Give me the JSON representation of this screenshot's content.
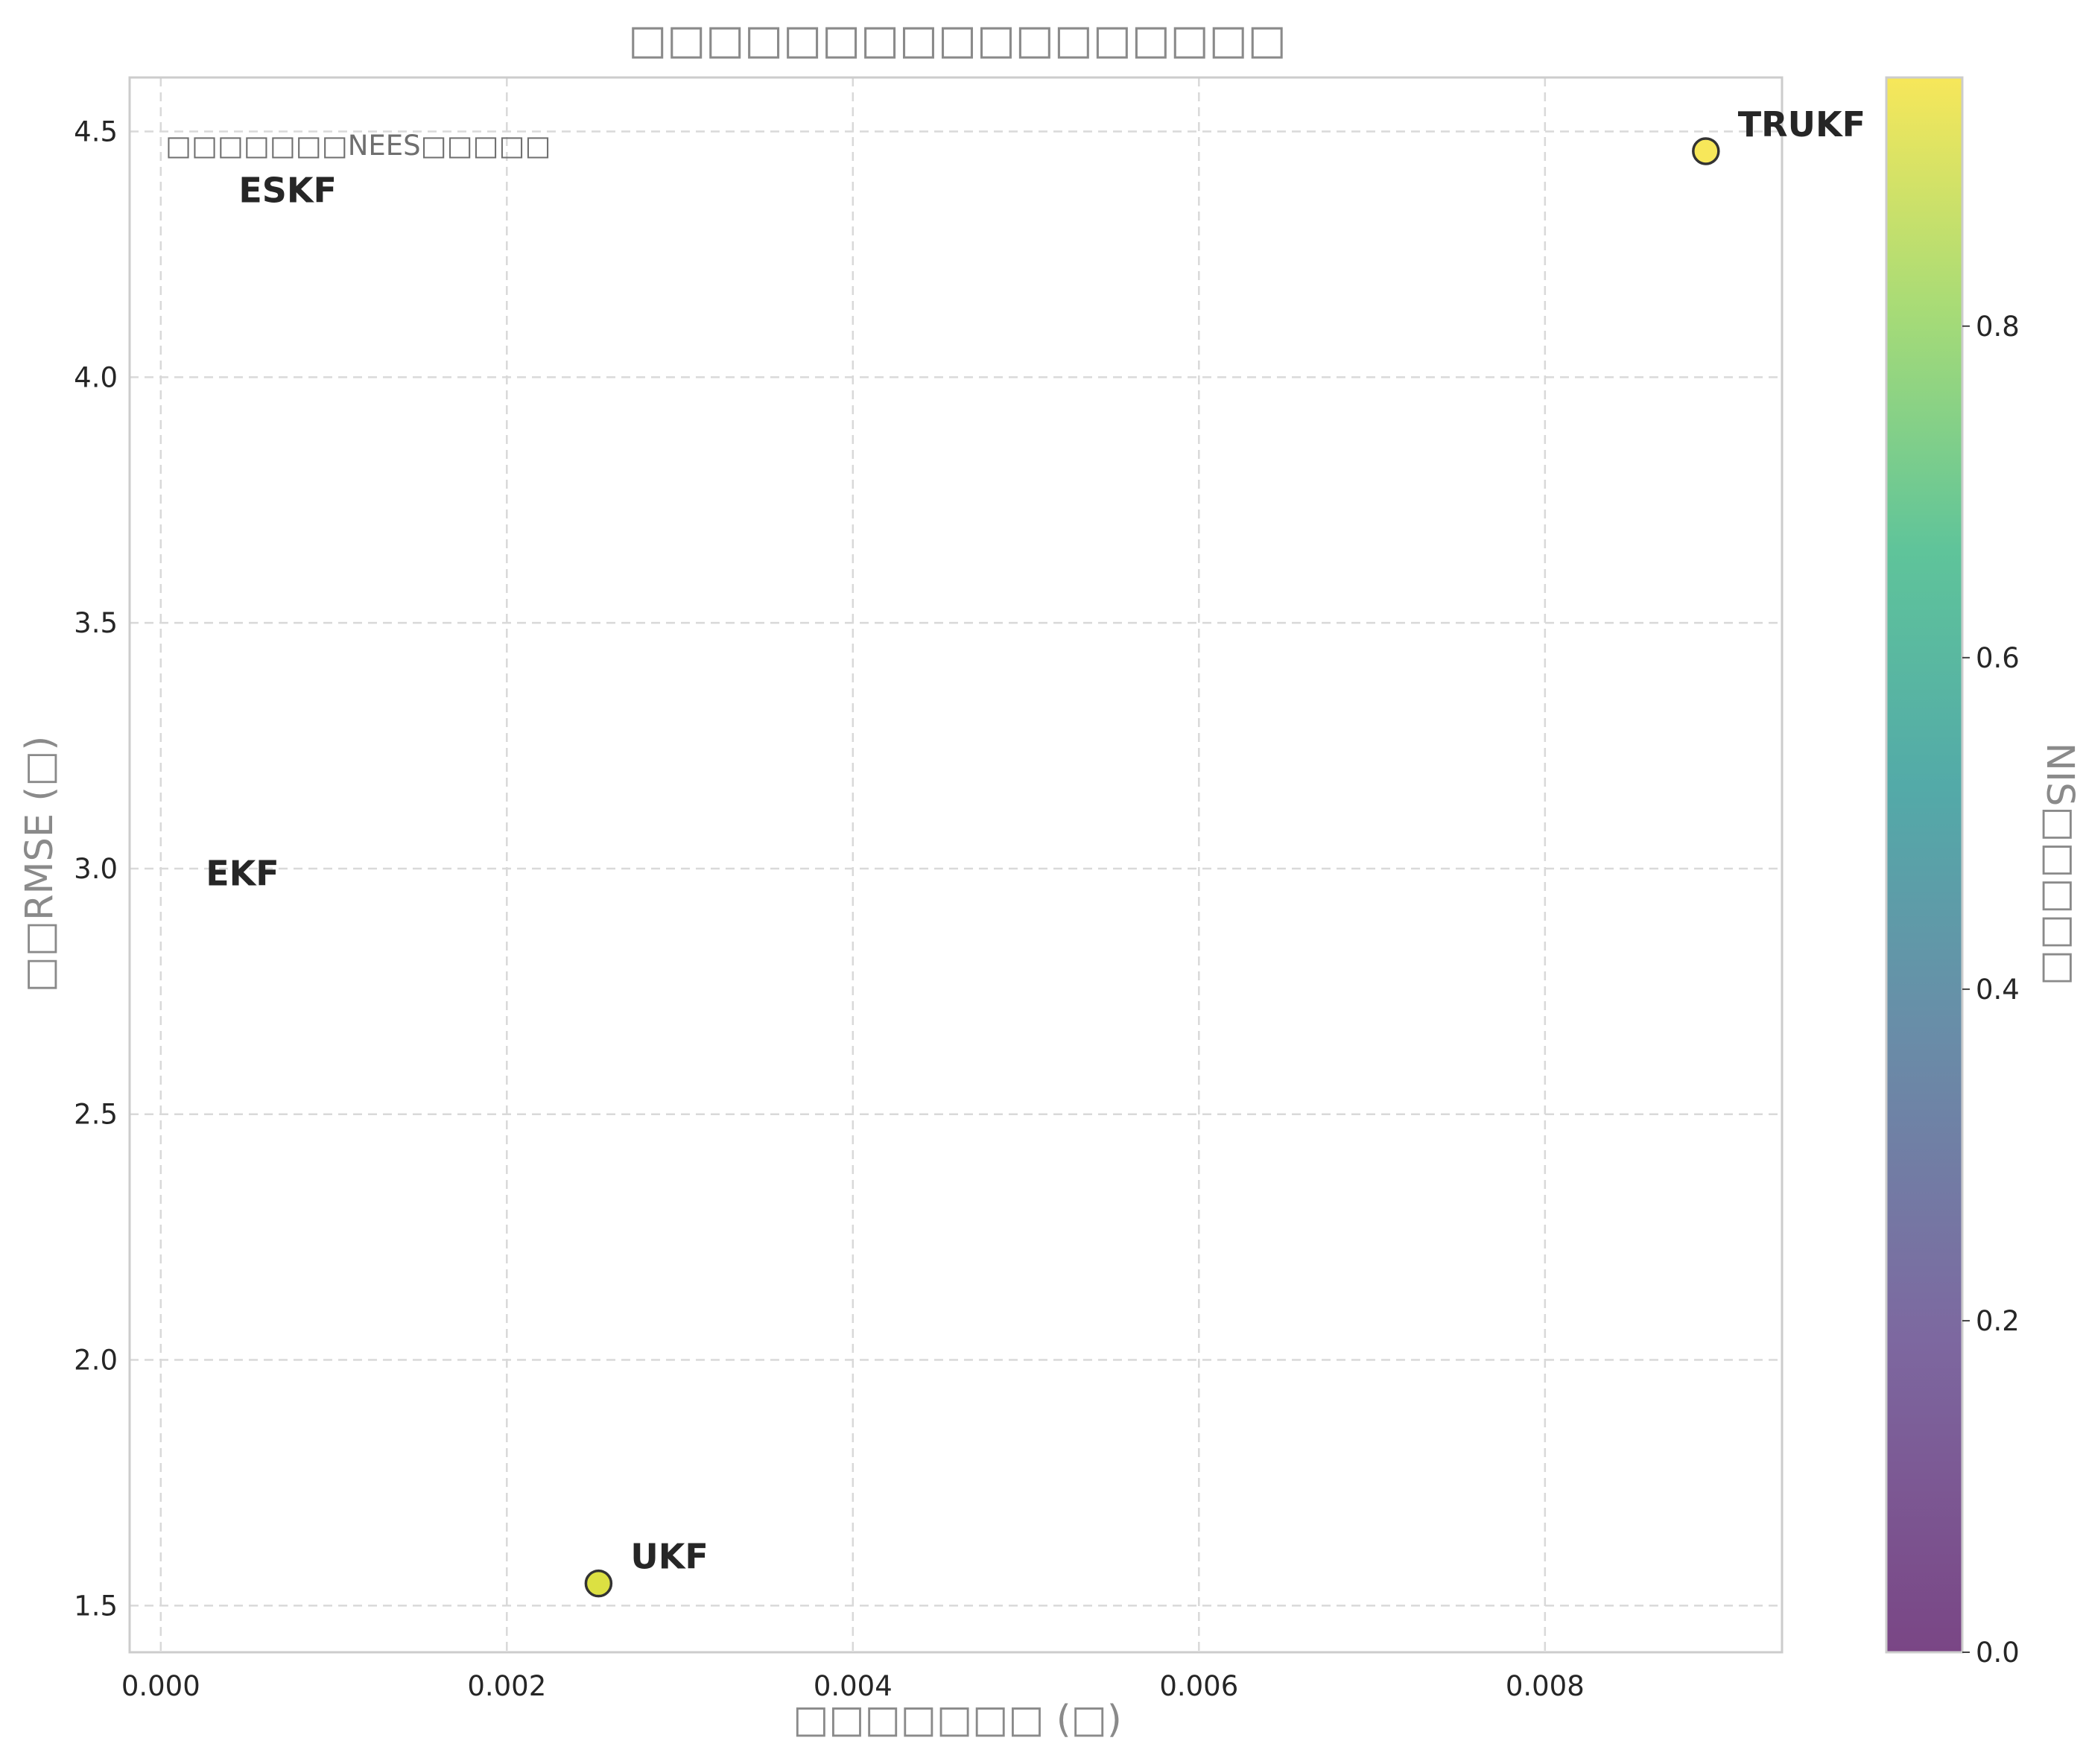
{
  "chart_data": {
    "type": "scatter",
    "title": "□□□□□□□□□□□□□□□□□",
    "xlabel": "□□□□□□□ (□)",
    "ylabel": "□□RMSE (□)",
    "xlim": [
      -0.00018,
      0.00937
    ],
    "ylim": [
      1.405,
      4.61
    ],
    "x_ticks": [
      "0.000",
      "0.002",
      "0.004",
      "0.006",
      "0.008"
    ],
    "y_ticks": [
      "1.5",
      "2.0",
      "2.5",
      "3.0",
      "3.5",
      "4.0",
      "4.5"
    ],
    "grid": true,
    "annotation": "□□□□□□□NEES□□□□□",
    "points": [
      {
        "name": "UKF",
        "x": 0.00253,
        "y": 1.545,
        "color_value": 0.9,
        "marker_visible": true
      },
      {
        "name": "TRUKF",
        "x": 0.00893,
        "y": 4.46,
        "color_value": 0.95,
        "marker_visible": true
      },
      {
        "name": "ESKF",
        "x": 0.00045,
        "y": 4.38,
        "color_value": null,
        "marker_visible": false
      },
      {
        "name": "EKF",
        "x": 0.00026,
        "y": 2.99,
        "color_value": null,
        "marker_visible": false
      }
    ],
    "colorbar": {
      "label": "NIS□□□□□",
      "colormap": "viridis",
      "range": [
        0,
        0.95
      ],
      "ticks": [
        "0.0",
        "0.2",
        "0.4",
        "0.6",
        "0.8"
      ]
    },
    "colors": {
      "ukf_marker": "#dce042",
      "trukf_marker": "#f7e75a",
      "marker_edge": "#333333",
      "grid": "#d9d9d9",
      "frame": "#cccccc"
    }
  }
}
